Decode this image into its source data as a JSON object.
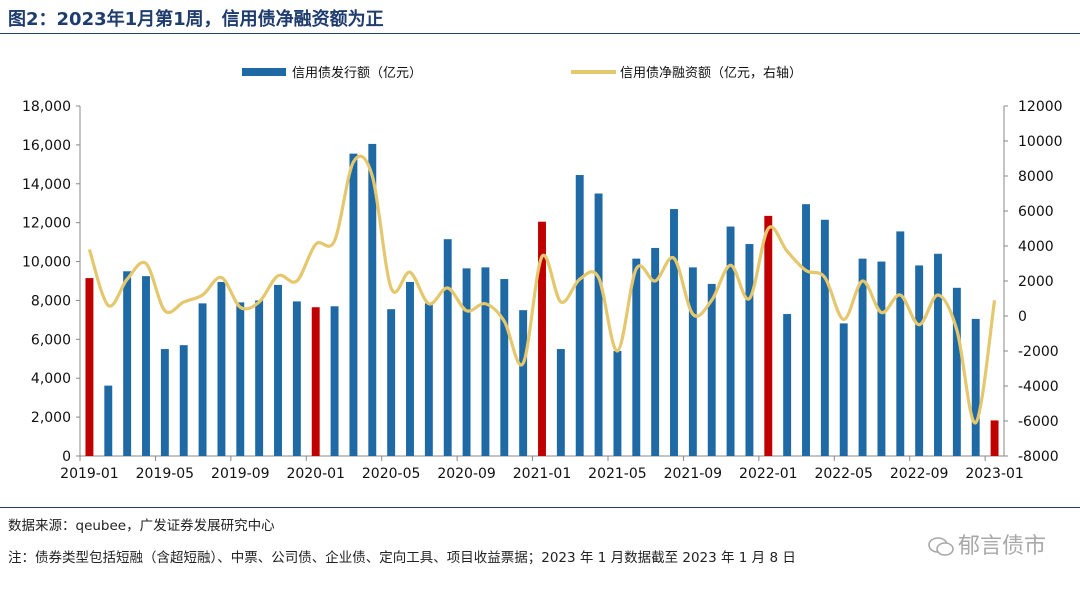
{
  "title": "图2：2023年1月第1周，信用债净融资额为正",
  "footer": {
    "source": "数据来源：qeubee，广发证券发展研究中心",
    "note": "注：债券类型包括短融（含超短融）、中票、公司债、企业债、定向工具、项目收益票据；2023 年 1 月数据截至 2023 年 1 月 8 日"
  },
  "watermark": "郁言债市",
  "colors": {
    "bar": "#1f6aa5",
    "bar_highlight": "#c00000",
    "line": "#e5c86e",
    "title": "#1f3c6e"
  },
  "chart_data": {
    "type": "bar+line",
    "legend": [
      "信用债发行额（亿元）",
      "信用债净融资额（亿元，右轴）"
    ],
    "legend_position": "top",
    "x_tick_labels": [
      "2019-01",
      "2019-05",
      "2019-09",
      "2020-01",
      "2020-05",
      "2020-09",
      "2021-01",
      "2021-05",
      "2021-09",
      "2022-01",
      "2022-05",
      "2022-09",
      "2023-01"
    ],
    "x_tick_every": 4,
    "left_axis": {
      "label": "信用债发行额（亿元）",
      "min": 0,
      "max": 18000,
      "ticks": [
        "0",
        "2,000",
        "4,000",
        "6,000",
        "8,000",
        "10,000",
        "12,000",
        "14,000",
        "16,000",
        "18,000"
      ]
    },
    "right_axis": {
      "label": "信用债净融资额（亿元，右轴）",
      "min": -8000,
      "max": 12000,
      "ticks": [
        "-8000",
        "-6000",
        "-4000",
        "-2000",
        "0",
        "2000",
        "4000",
        "6000",
        "8000",
        "10000",
        "12000"
      ]
    },
    "categories": [
      "2019-01",
      "2019-02",
      "2019-03",
      "2019-04",
      "2019-05",
      "2019-06",
      "2019-07",
      "2019-08",
      "2019-09",
      "2019-10",
      "2019-11",
      "2019-12",
      "2020-01",
      "2020-02",
      "2020-03",
      "2020-04",
      "2020-05",
      "2020-06",
      "2020-07",
      "2020-08",
      "2020-09",
      "2020-10",
      "2020-11",
      "2020-12",
      "2021-01",
      "2021-02",
      "2021-03",
      "2021-04",
      "2021-05",
      "2021-06",
      "2021-07",
      "2021-08",
      "2021-09",
      "2021-10",
      "2021-11",
      "2021-12",
      "2022-01",
      "2022-02",
      "2022-03",
      "2022-04",
      "2022-05",
      "2022-06",
      "2022-07",
      "2022-08",
      "2022-09",
      "2022-10",
      "2022-11",
      "2022-12",
      "2023-01"
    ],
    "series": [
      {
        "name": "信用债发行额（亿元）",
        "axis": "left",
        "type": "bar",
        "values": [
          9150,
          3620,
          9500,
          9250,
          5500,
          5700,
          7850,
          8950,
          7900,
          8000,
          8800,
          7950,
          7650,
          7700,
          15550,
          16050,
          7550,
          8950,
          7850,
          11150,
          9650,
          9700,
          9100,
          7500,
          12050,
          5500,
          14450,
          13500,
          5400,
          10150,
          10700,
          12700,
          9700,
          8850,
          11800,
          10900,
          12350,
          7300,
          12950,
          12150,
          6820,
          10150,
          10000,
          11550,
          9800,
          10400,
          8650,
          7050,
          1830
        ]
      },
      {
        "name": "信用债净融资额（亿元，右轴）",
        "axis": "right",
        "type": "line",
        "values": [
          3800,
          600,
          2100,
          3000,
          300,
          800,
          1200,
          2200,
          500,
          800,
          2300,
          2000,
          4100,
          4300,
          8800,
          8000,
          1600,
          2500,
          700,
          1600,
          300,
          700,
          -300,
          -2700,
          3400,
          800,
          2100,
          2200,
          -2000,
          2700,
          2000,
          3300,
          100,
          900,
          2900,
          1000,
          5000,
          3700,
          2600,
          2200,
          -200,
          2000,
          200,
          1200,
          -500,
          1200,
          -800,
          -6100,
          900
        ]
      }
    ],
    "highlighted_bars": [
      "2019-01",
      "2020-01",
      "2021-01",
      "2022-01",
      "2023-01"
    ]
  }
}
